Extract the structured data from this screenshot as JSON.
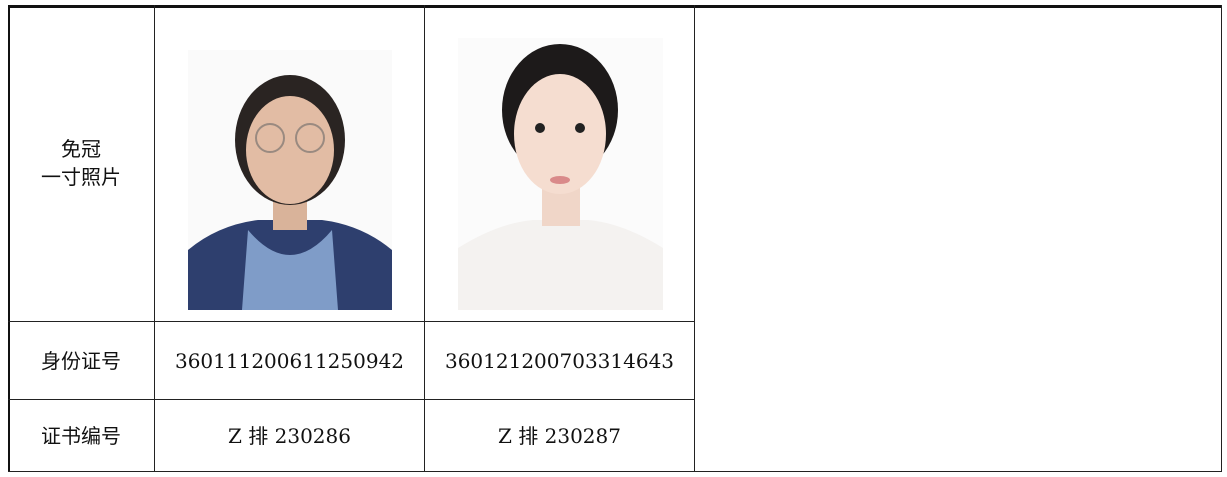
{
  "photo_row": {
    "label": [
      "免冠",
      "一寸照片"
    ]
  },
  "rows": [
    [
      "身份证号",
      "360111200611250942",
      "360121200703314643"
    ],
    [
      "证书编号",
      "Z 排 230286",
      "Z 排 230287"
    ]
  ]
}
